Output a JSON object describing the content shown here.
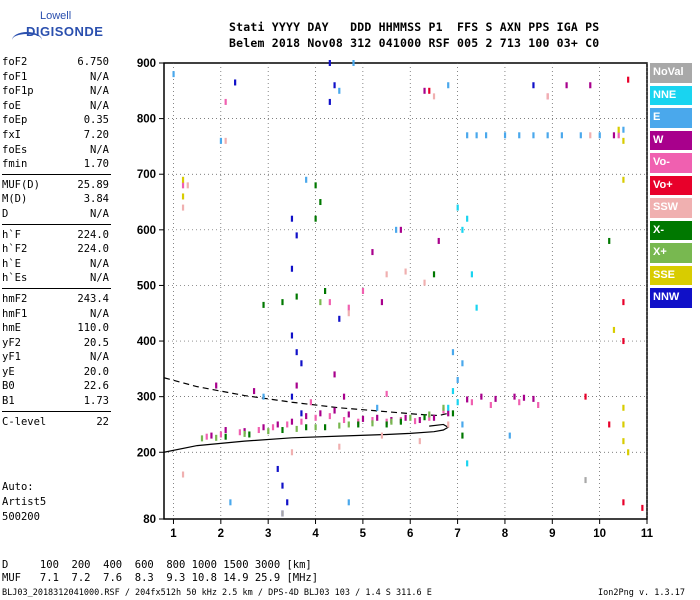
{
  "logo": {
    "line1": "Lowell",
    "line2": "DIGISONDE"
  },
  "header": {
    "row1": "Stati YYYY DAY   DDD HHMMSS P1  FFS S AXN PPS IGA PS",
    "row2": "Belem 2018 Nov08 312 041000 RSF 005 2 713 100 03+ C0"
  },
  "params": {
    "group1": [
      {
        "name": "foF2",
        "value": "6.750"
      },
      {
        "name": "foF1",
        "value": "N/A"
      },
      {
        "name": "foF1p",
        "value": "N/A"
      },
      {
        "name": "foE",
        "value": "N/A"
      },
      {
        "name": "foEp",
        "value": "0.35"
      },
      {
        "name": "fxI",
        "value": "7.20"
      },
      {
        "name": "foEs",
        "value": "N/A"
      },
      {
        "name": "fmin",
        "value": "1.70"
      }
    ],
    "group2": [
      {
        "name": "MUF(D)",
        "value": "25.89"
      },
      {
        "name": "M(D)",
        "value": "3.84"
      },
      {
        "name": "D",
        "value": "N/A"
      }
    ],
    "group3": [
      {
        "name": "h`F",
        "value": "224.0"
      },
      {
        "name": "h`F2",
        "value": "224.0"
      },
      {
        "name": "h`E",
        "value": "N/A"
      },
      {
        "name": "h`Es",
        "value": "N/A"
      }
    ],
    "group4": [
      {
        "name": "hmF2",
        "value": "243.4"
      },
      {
        "name": "hmF1",
        "value": "N/A"
      },
      {
        "name": "hmE",
        "value": "110.0"
      },
      {
        "name": "yF2",
        "value": "20.5"
      },
      {
        "name": "yF1",
        "value": "N/A"
      },
      {
        "name": "yE",
        "value": "20.0"
      },
      {
        "name": "B0",
        "value": "22.6"
      },
      {
        "name": "B1",
        "value": "1.73"
      }
    ],
    "group5": [
      {
        "name": "C-level",
        "value": "22"
      }
    ]
  },
  "auto": {
    "line1": "Auto:",
    "line2": "Artist5",
    "line3": "500200"
  },
  "legend": [
    {
      "label": "NoVal",
      "color": "#a8a8a8"
    },
    {
      "label": "NNE",
      "color": "#19d4f0"
    },
    {
      "label": "E",
      "color": "#4aa8ec"
    },
    {
      "label": "W",
      "color": "#a8008c"
    },
    {
      "label": "Vo-",
      "color": "#f060b0"
    },
    {
      "label": "Vo+",
      "color": "#e8002a"
    },
    {
      "label": "SSW",
      "color": "#f0b0b0"
    },
    {
      "label": "X-",
      "color": "#007800"
    },
    {
      "label": "X+",
      "color": "#78b850"
    },
    {
      "label": "SSE",
      "color": "#d8cc00"
    },
    {
      "label": "NNW",
      "color": "#1010c8"
    }
  ],
  "footer": {
    "line1": "D     100  200  400  600  800 1000 1500 3000 [km]",
    "line2": "MUF   7.1  7.2  7.6  8.3  9.3 10.8 14.9 25.9 [MHz]",
    "line3": "BLJ03_2018312041000.RSF / 204fx512h 50 kHz 2.5 km / DPS-4D BLJ03 103 / 1.4 S 311.6 E",
    "line4": "Ion2Png v. 1.3.17"
  },
  "chart_data": {
    "type": "scatter",
    "xlim": [
      0.8,
      11
    ],
    "ylim": [
      80,
      900
    ],
    "x_ticks": [
      1,
      2,
      3,
      4,
      5,
      6,
      7,
      8,
      9,
      10,
      11
    ],
    "y_ticks": [
      80,
      200,
      300,
      400,
      500,
      600,
      700,
      800,
      900
    ],
    "series": [
      {
        "name": "W",
        "color": "#a8008c",
        "points": [
          [
            1.8,
            230
          ],
          [
            2.1,
            240
          ],
          [
            2.5,
            238
          ],
          [
            2.9,
            245
          ],
          [
            3.2,
            250
          ],
          [
            3.5,
            255
          ],
          [
            3.8,
            265
          ],
          [
            4.1,
            270
          ],
          [
            4.4,
            275
          ],
          [
            4.7,
            268
          ],
          [
            5.0,
            260
          ],
          [
            5.3,
            262
          ],
          [
            5.6,
            258
          ],
          [
            5.9,
            262
          ],
          [
            6.2,
            258
          ],
          [
            6.5,
            262
          ],
          [
            6.8,
            270
          ],
          [
            7.2,
            295
          ],
          [
            7.5,
            300
          ],
          [
            7.8,
            296
          ],
          [
            8.2,
            300
          ],
          [
            8.4,
            298
          ],
          [
            8.6,
            296
          ],
          [
            6.3,
            850
          ],
          [
            4.6,
            300
          ],
          [
            5.2,
            560
          ],
          [
            5.8,
            600
          ],
          [
            6.6,
            580
          ],
          [
            9.3,
            860
          ],
          [
            9.8,
            860
          ],
          [
            10.3,
            770
          ],
          [
            5.4,
            470
          ],
          [
            3.6,
            320
          ],
          [
            4.4,
            340
          ],
          [
            2.7,
            310
          ],
          [
            1.9,
            320
          ]
        ]
      },
      {
        "name": "Vo-",
        "color": "#f060b0",
        "points": [
          [
            1.7,
            228
          ],
          [
            2.0,
            232
          ],
          [
            2.4,
            236
          ],
          [
            2.8,
            240
          ],
          [
            3.1,
            245
          ],
          [
            3.4,
            250
          ],
          [
            3.7,
            255
          ],
          [
            4.0,
            262
          ],
          [
            4.3,
            265
          ],
          [
            4.6,
            258
          ],
          [
            4.9,
            255
          ],
          [
            5.2,
            258
          ],
          [
            5.5,
            255
          ],
          [
            5.8,
            258
          ],
          [
            6.1,
            256
          ],
          [
            6.4,
            262
          ],
          [
            6.7,
            275
          ],
          [
            7.3,
            290
          ],
          [
            7.7,
            285
          ],
          [
            8.3,
            290
          ],
          [
            8.7,
            285
          ],
          [
            4.3,
            470
          ],
          [
            4.7,
            460
          ],
          [
            1.2,
            680
          ],
          [
            2.1,
            830
          ],
          [
            8.9,
            840
          ],
          [
            10.4,
            770
          ],
          [
            5.0,
            490
          ],
          [
            3.9,
            290
          ],
          [
            5.5,
            305
          ]
        ]
      },
      {
        "name": "Vo+",
        "color": "#e8002a",
        "points": [
          [
            10.5,
            110
          ],
          [
            10.5,
            400
          ],
          [
            10.5,
            470
          ],
          [
            10.9,
            100
          ],
          [
            10.2,
            250
          ],
          [
            9.7,
            300
          ],
          [
            6.4,
            850
          ],
          [
            10.6,
            870
          ]
        ]
      },
      {
        "name": "E",
        "color": "#4aa8ec",
        "points": [
          [
            7.2,
            770
          ],
          [
            7.4,
            770
          ],
          [
            7.6,
            770
          ],
          [
            8.0,
            770
          ],
          [
            8.3,
            770
          ],
          [
            8.6,
            770
          ],
          [
            8.9,
            770
          ],
          [
            9.2,
            770
          ],
          [
            9.6,
            770
          ],
          [
            10.0,
            770
          ],
          [
            10.5,
            780
          ],
          [
            7.0,
            330
          ],
          [
            7.1,
            360
          ],
          [
            6.9,
            380
          ],
          [
            7.1,
            250
          ],
          [
            4.5,
            850
          ],
          [
            4.8,
            900
          ],
          [
            3.8,
            690
          ],
          [
            4.7,
            110
          ],
          [
            2.2,
            110
          ],
          [
            8.1,
            230
          ],
          [
            2.0,
            760
          ],
          [
            1.0,
            880
          ],
          [
            6.8,
            860
          ],
          [
            5.7,
            600
          ],
          [
            2.9,
            300
          ],
          [
            5.3,
            280
          ]
        ]
      },
      {
        "name": "NNE",
        "color": "#19d4f0",
        "points": [
          [
            7.0,
            640
          ],
          [
            7.2,
            620
          ],
          [
            7.1,
            600
          ],
          [
            7.3,
            520
          ],
          [
            7.4,
            460
          ],
          [
            7.2,
            180
          ],
          [
            7.0,
            290
          ],
          [
            6.9,
            310
          ],
          [
            6.8,
            280
          ]
        ]
      },
      {
        "name": "SSW",
        "color": "#f0b0b0",
        "points": [
          [
            1.2,
            640
          ],
          [
            1.3,
            680
          ],
          [
            2.1,
            760
          ],
          [
            6.5,
            840
          ],
          [
            8.9,
            840
          ],
          [
            1.2,
            160
          ],
          [
            3.5,
            200
          ],
          [
            4.5,
            210
          ],
          [
            5.4,
            230
          ],
          [
            6.2,
            220
          ],
          [
            6.8,
            250
          ],
          [
            4.7,
            450
          ],
          [
            5.5,
            520
          ],
          [
            9.8,
            770
          ],
          [
            5.9,
            525
          ],
          [
            6.3,
            505
          ]
        ]
      },
      {
        "name": "X-",
        "color": "#007800",
        "points": [
          [
            4.0,
            680
          ],
          [
            4.1,
            650
          ],
          [
            4.0,
            620
          ],
          [
            3.6,
            480
          ],
          [
            2.9,
            465
          ],
          [
            6.9,
            270
          ],
          [
            6.3,
            263
          ],
          [
            5.8,
            255
          ],
          [
            5.5,
            250
          ],
          [
            4.9,
            250
          ],
          [
            4.2,
            245
          ],
          [
            3.8,
            245
          ],
          [
            3.3,
            240
          ],
          [
            2.6,
            232
          ],
          [
            2.1,
            228
          ],
          [
            10.2,
            580
          ],
          [
            3.3,
            470
          ],
          [
            4.2,
            490
          ],
          [
            6.5,
            520
          ],
          [
            7.1,
            230
          ]
        ]
      },
      {
        "name": "X+",
        "color": "#78b850",
        "points": [
          [
            6.4,
            268
          ],
          [
            6.0,
            262
          ],
          [
            5.6,
            255
          ],
          [
            5.2,
            252
          ],
          [
            4.7,
            250
          ],
          [
            4.5,
            248
          ],
          [
            4.0,
            245
          ],
          [
            3.6,
            242
          ],
          [
            3.0,
            238
          ],
          [
            2.5,
            233
          ],
          [
            1.9,
            226
          ],
          [
            4.1,
            470
          ],
          [
            6.7,
            280
          ],
          [
            1.6,
            225
          ]
        ]
      },
      {
        "name": "SSE",
        "color": "#d8cc00",
        "points": [
          [
            1.2,
            690
          ],
          [
            1.2,
            660
          ],
          [
            10.4,
            780
          ],
          [
            10.5,
            760
          ],
          [
            10.5,
            690
          ],
          [
            10.3,
            420
          ],
          [
            10.5,
            250
          ],
          [
            10.5,
            220
          ],
          [
            10.6,
            200
          ],
          [
            10.5,
            280
          ]
        ]
      },
      {
        "name": "NNW",
        "color": "#1010c8",
        "points": [
          [
            3.5,
            530
          ],
          [
            3.6,
            590
          ],
          [
            3.5,
            620
          ],
          [
            3.2,
            170
          ],
          [
            3.3,
            140
          ],
          [
            3.4,
            110
          ],
          [
            3.3,
            90
          ],
          [
            3.7,
            360
          ],
          [
            3.5,
            410
          ],
          [
            4.3,
            900
          ],
          [
            4.4,
            860
          ],
          [
            4.3,
            830
          ],
          [
            3.6,
            380
          ],
          [
            4.5,
            440
          ],
          [
            3.7,
            270
          ],
          [
            3.5,
            300
          ],
          [
            2.3,
            865
          ],
          [
            8.6,
            860
          ]
        ]
      },
      {
        "name": "NoVal",
        "color": "#a8a8a8",
        "points": [
          [
            9.7,
            150
          ],
          [
            3.3,
            90
          ]
        ]
      }
    ],
    "curves": {
      "solid": [
        [
          0.8,
          200
        ],
        [
          1.5,
          212
        ],
        [
          2.5,
          220
        ],
        [
          3.5,
          226
        ],
        [
          4.5,
          229
        ],
        [
          5.5,
          232
        ],
        [
          6.0,
          234
        ],
        [
          6.5,
          237
        ],
        [
          6.7,
          240
        ],
        [
          6.8,
          245
        ],
        [
          6.7,
          250
        ],
        [
          6.4,
          247
        ]
      ],
      "dashed": [
        [
          0.8,
          334
        ],
        [
          1.5,
          318
        ],
        [
          2.5,
          302
        ],
        [
          3.5,
          290
        ],
        [
          4.5,
          280
        ],
        [
          5.5,
          273
        ],
        [
          6.2,
          268
        ],
        [
          6.6,
          266
        ],
        [
          6.8,
          270
        ]
      ]
    }
  }
}
